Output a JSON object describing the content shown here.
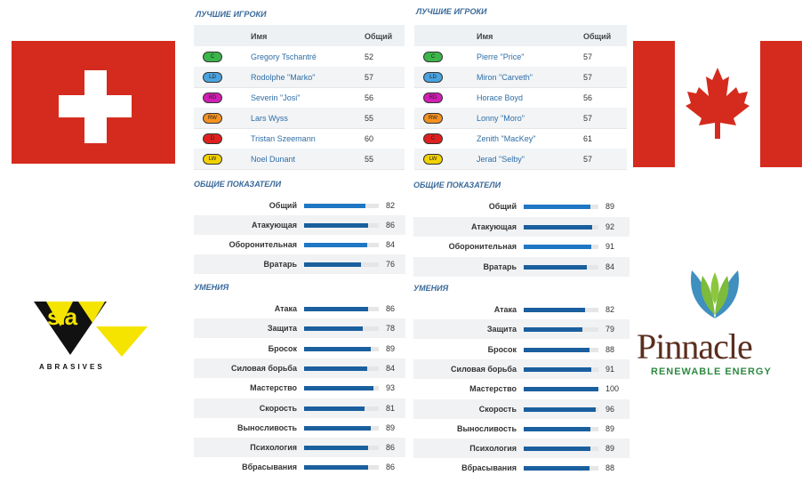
{
  "colors": {
    "accent": "#1f77c4",
    "title": "#3a6a9a",
    "link": "#2e6ea6"
  },
  "left_team": {
    "top_players": {
      "title": "Лучшие игроки",
      "col_name": "Имя",
      "col_overall": "Общий",
      "rows": [
        {
          "pos": "C",
          "pos_color": "#3cb54a",
          "name": "Gregory Tschantré",
          "overall": "52"
        },
        {
          "pos": "LD",
          "pos_color": "#4aa3e0",
          "name": "Rodolphe \"Marko\"",
          "overall": "57"
        },
        {
          "pos": "RD",
          "pos_color": "#d01fb2",
          "name": "Severin \"Josi\"",
          "overall": "56"
        },
        {
          "pos": "RW",
          "pos_color": "#f5921f",
          "name": "Lars Wyss",
          "overall": "55"
        },
        {
          "pos": "D",
          "pos_color": "#e02020",
          "name": "Tristan Szeemann",
          "overall": "60"
        },
        {
          "pos": "LW",
          "pos_color": "#f2d200",
          "name": "Noel Dunant",
          "overall": "55"
        }
      ]
    },
    "general": {
      "title": "Общие показатели",
      "stats": [
        {
          "label": "Общий",
          "value": 82
        },
        {
          "label": "Атакующая",
          "value": 86
        },
        {
          "label": "Оборонительная",
          "value": 84
        },
        {
          "label": "Вратарь",
          "value": 76
        }
      ]
    },
    "skills": {
      "title": "Умения",
      "stats": [
        {
          "label": "Атака",
          "value": 86
        },
        {
          "label": "Защита",
          "value": 78
        },
        {
          "label": "Бросок",
          "value": 89
        },
        {
          "label": "Силовая борьба",
          "value": 84
        },
        {
          "label": "Мастерство",
          "value": 93
        },
        {
          "label": "Скорость",
          "value": 81
        },
        {
          "label": "Выносливость",
          "value": 89
        },
        {
          "label": "Психология",
          "value": 86
        },
        {
          "label": "Вбрасывания",
          "value": 86
        }
      ]
    }
  },
  "right_team": {
    "top_players": {
      "title": "Лучшие игроки",
      "col_name": "Имя",
      "col_overall": "Общий",
      "rows": [
        {
          "pos": "C",
          "pos_color": "#3cb54a",
          "name": "Pierre \"Price\"",
          "overall": "57"
        },
        {
          "pos": "LD",
          "pos_color": "#4aa3e0",
          "name": "Miron \"Carveth\"",
          "overall": "57"
        },
        {
          "pos": "RD",
          "pos_color": "#d01fb2",
          "name": "Horace Boyd",
          "overall": "56"
        },
        {
          "pos": "RW",
          "pos_color": "#f5921f",
          "name": "Lonny \"Moro\"",
          "overall": "57"
        },
        {
          "pos": "C",
          "pos_color": "#e02020",
          "name": "Zenith \"MacKey\"",
          "overall": "61"
        },
        {
          "pos": "LW",
          "pos_color": "#f2d200",
          "name": "Jerad \"Selby\"",
          "overall": "57"
        }
      ]
    },
    "general": {
      "title": "Общие показатели",
      "stats": [
        {
          "label": "Общий",
          "value": 89
        },
        {
          "label": "Атакующая",
          "value": 92
        },
        {
          "label": "Оборонительная",
          "value": 91
        },
        {
          "label": "Вратарь",
          "value": 84
        }
      ]
    },
    "skills": {
      "title": "Умения",
      "stats": [
        {
          "label": "Атака",
          "value": 82
        },
        {
          "label": "Защита",
          "value": 79
        },
        {
          "label": "Бросок",
          "value": 88
        },
        {
          "label": "Силовая борьба",
          "value": 91
        },
        {
          "label": "Мастерство",
          "value": 100
        },
        {
          "label": "Скорость",
          "value": 96
        },
        {
          "label": "Выносливость",
          "value": 89
        },
        {
          "label": "Психология",
          "value": 89
        },
        {
          "label": "Вбрасывания",
          "value": 88
        }
      ]
    }
  },
  "logos": {
    "left_sponsor": {
      "brand": "sia",
      "tagline": "ABRASIVES"
    },
    "right_sponsor": {
      "brand": "Pinnacle",
      "tagline": "RENEWABLE ENERGY"
    }
  }
}
